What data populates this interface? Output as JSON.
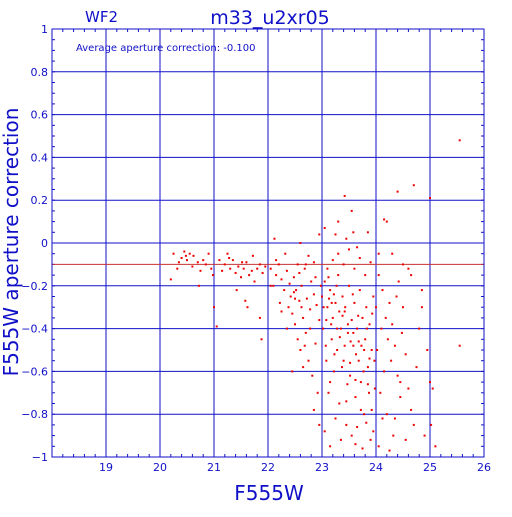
{
  "chart_data": {
    "type": "scatter",
    "chip_label": "WF2",
    "title": "m33_u2xr05",
    "annotation": "Average aperture correction: -0.100",
    "xlabel": "F555W",
    "ylabel": "F555W aperture correction",
    "xlim": [
      18,
      26
    ],
    "ylim": [
      -1,
      1
    ],
    "xticks": [
      19,
      20,
      21,
      22,
      23,
      24,
      25,
      26
    ],
    "yticks": [
      -1,
      -0.8,
      -0.6,
      -0.4,
      -0.2,
      0,
      0.2,
      0.4,
      0.6,
      0.8,
      1
    ],
    "ytick_labels": [
      "−1",
      "−0.8",
      "−0.6",
      "−0.4",
      "−0.2",
      "0",
      "0.2",
      "0.4",
      "0.6",
      "0.8",
      "1"
    ],
    "grid": true,
    "reference_line_y": -0.1,
    "colors": {
      "axes": "#1010c8",
      "points": "#ee0000",
      "reference_line": "#c83030",
      "background": "#ffffff"
    },
    "points": [
      [
        20.25,
        -0.05
      ],
      [
        20.32,
        -0.12
      ],
      [
        20.4,
        -0.07
      ],
      [
        20.45,
        -0.04
      ],
      [
        20.5,
        -0.08
      ],
      [
        20.55,
        -0.05
      ],
      [
        20.6,
        -0.11
      ],
      [
        20.62,
        -0.06
      ],
      [
        20.7,
        -0.09
      ],
      [
        20.75,
        -0.13
      ],
      [
        20.8,
        -0.08
      ],
      [
        20.85,
        -0.1
      ],
      [
        20.9,
        -0.05
      ],
      [
        20.95,
        -0.12
      ],
      [
        20.72,
        -0.2
      ],
      [
        20.2,
        -0.17
      ],
      [
        20.35,
        -0.09
      ],
      [
        20.48,
        -0.06
      ],
      [
        21.0,
        -0.3
      ],
      [
        21.05,
        -0.39
      ],
      [
        20.98,
        -0.15
      ],
      [
        21.2,
        -0.1
      ],
      [
        21.25,
        -0.05
      ],
      [
        21.3,
        -0.12
      ],
      [
        21.35,
        -0.08
      ],
      [
        21.4,
        -0.14
      ],
      [
        21.45,
        -0.11
      ],
      [
        21.5,
        -0.16
      ],
      [
        21.55,
        -0.12
      ],
      [
        21.6,
        -0.09
      ],
      [
        21.65,
        -0.15
      ],
      [
        21.7,
        -0.13
      ],
      [
        21.75,
        -0.18
      ],
      [
        21.8,
        -0.12
      ],
      [
        21.85,
        -0.1
      ],
      [
        21.9,
        -0.14
      ],
      [
        21.95,
        -0.11
      ],
      [
        21.42,
        -0.22
      ],
      [
        21.62,
        -0.3
      ],
      [
        21.85,
        -0.35
      ],
      [
        21.88,
        -0.45
      ],
      [
        21.52,
        -0.09
      ],
      [
        21.28,
        -0.07
      ],
      [
        21.72,
        -0.06
      ],
      [
        21.1,
        -0.08
      ],
      [
        21.15,
        -0.13
      ],
      [
        21.58,
        -0.27
      ],
      [
        22.05,
        -0.12
      ],
      [
        22.1,
        -0.2
      ],
      [
        22.12,
        0.02
      ],
      [
        22.15,
        -0.15
      ],
      [
        22.2,
        -0.1
      ],
      [
        22.22,
        -0.28
      ],
      [
        22.25,
        -0.17
      ],
      [
        22.3,
        -0.22
      ],
      [
        22.35,
        -0.13
      ],
      [
        22.38,
        -0.3
      ],
      [
        22.4,
        -0.19
      ],
      [
        22.42,
        -0.25
      ],
      [
        22.45,
        -0.33
      ],
      [
        22.48,
        -0.16
      ],
      [
        22.5,
        -0.38
      ],
      [
        22.52,
        -0.22
      ],
      [
        22.55,
        -0.45
      ],
      [
        22.58,
        -0.27
      ],
      [
        22.6,
        -0.5
      ],
      [
        22.62,
        -0.2
      ],
      [
        22.65,
        -0.35
      ],
      [
        22.68,
        -0.12
      ],
      [
        22.7,
        -0.42
      ],
      [
        22.72,
        -0.26
      ],
      [
        22.75,
        -0.55
      ],
      [
        22.78,
        -0.31
      ],
      [
        22.8,
        -0.18
      ],
      [
        22.82,
        -0.62
      ],
      [
        22.85,
        -0.24
      ],
      [
        22.88,
        -0.47
      ],
      [
        22.9,
        -0.29
      ],
      [
        22.92,
        -0.7
      ],
      [
        22.95,
        -0.36
      ],
      [
        22.98,
        -0.2
      ],
      [
        22.15,
        -0.08
      ],
      [
        22.32,
        -0.05
      ],
      [
        22.55,
        -0.1
      ],
      [
        22.6,
        0.0
      ],
      [
        22.75,
        -0.06
      ],
      [
        22.85,
        -0.09
      ],
      [
        22.95,
        0.04
      ],
      [
        22.45,
        -0.6
      ],
      [
        22.65,
        -0.58
      ],
      [
        22.85,
        -0.78
      ],
      [
        22.95,
        -0.85
      ],
      [
        22.35,
        -0.4
      ],
      [
        22.25,
        -0.32
      ],
      [
        22.7,
        -0.1
      ],
      [
        22.48,
        -0.23
      ],
      [
        22.58,
        -0.14
      ],
      [
        22.88,
        -0.16
      ],
      [
        22.78,
        -0.4
      ],
      [
        22.68,
        -0.48
      ],
      [
        22.62,
        -0.3
      ],
      [
        22.5,
        -0.26
      ],
      [
        22.05,
        -0.2
      ],
      [
        23.0,
        -0.25
      ],
      [
        23.02,
        -0.4
      ],
      [
        23.05,
        -0.18
      ],
      [
        23.05,
        0.07
      ],
      [
        23.05,
        -0.88
      ],
      [
        23.08,
        -0.55
      ],
      [
        23.1,
        -0.3
      ],
      [
        23.12,
        -0.7
      ],
      [
        23.15,
        -0.22
      ],
      [
        23.18,
        -0.45
      ],
      [
        23.2,
        -0.35
      ],
      [
        23.22,
        -0.6
      ],
      [
        23.25,
        -0.28
      ],
      [
        23.28,
        -0.5
      ],
      [
        23.3,
        -0.15
      ],
      [
        23.32,
        -0.75
      ],
      [
        23.35,
        -0.4
      ],
      [
        23.38,
        -0.25
      ],
      [
        23.4,
        -0.55
      ],
      [
        23.42,
        -0.32
      ],
      [
        23.45,
        -0.85
      ],
      [
        23.48,
        -0.42
      ],
      [
        23.5,
        -0.2
      ],
      [
        23.52,
        -0.62
      ],
      [
        23.55,
        -0.36
      ],
      [
        23.58,
        -0.48
      ],
      [
        23.6,
        -0.28
      ],
      [
        23.62,
        -0.72
      ],
      [
        23.65,
        -0.4
      ],
      [
        23.68,
        -0.55
      ],
      [
        23.7,
        -0.22
      ],
      [
        23.72,
        -0.65
      ],
      [
        23.75,
        -0.35
      ],
      [
        23.78,
        -0.8
      ],
      [
        23.8,
        -0.45
      ],
      [
        23.82,
        -0.3
      ],
      [
        23.85,
        -0.58
      ],
      [
        23.88,
        -0.38
      ],
      [
        23.9,
        -0.92
      ],
      [
        23.92,
        -0.5
      ],
      [
        23.95,
        -0.25
      ],
      [
        23.98,
        -0.68
      ],
      [
        23.03,
        -0.3
      ],
      [
        23.07,
        -0.48
      ],
      [
        23.13,
        -0.26
      ],
      [
        23.17,
        -0.38
      ],
      [
        23.23,
        -0.52
      ],
      [
        23.27,
        -0.2
      ],
      [
        23.33,
        -0.44
      ],
      [
        23.37,
        -0.58
      ],
      [
        23.43,
        -0.3
      ],
      [
        23.47,
        -0.66
      ],
      [
        23.53,
        -0.46
      ],
      [
        23.57,
        -0.24
      ],
      [
        23.63,
        -0.52
      ],
      [
        23.67,
        -0.34
      ],
      [
        23.73,
        -0.48
      ],
      [
        23.77,
        -0.6
      ],
      [
        23.83,
        -0.4
      ],
      [
        23.87,
        -0.7
      ],
      [
        23.93,
        -0.33
      ],
      [
        23.97,
        -0.55
      ],
      [
        23.1,
        -0.12
      ],
      [
        23.2,
        -0.08
      ],
      [
        23.3,
        -0.05
      ],
      [
        23.4,
        -0.1
      ],
      [
        23.5,
        -0.03
      ],
      [
        23.6,
        -0.12
      ],
      [
        23.7,
        -0.07
      ],
      [
        23.8,
        -0.15
      ],
      [
        23.9,
        -0.09
      ],
      [
        23.15,
        -0.95
      ],
      [
        23.35,
        -0.92
      ],
      [
        23.55,
        -0.9
      ],
      [
        23.75,
        -0.96
      ],
      [
        23.95,
        -0.88
      ],
      [
        23.25,
        0.04
      ],
      [
        23.45,
        0.02
      ],
      [
        23.65,
        -0.02
      ],
      [
        23.85,
        0.05
      ],
      [
        23.3,
        0.1
      ],
      [
        23.55,
        0.15
      ],
      [
        23.15,
        -0.65
      ],
      [
        23.25,
        -0.82
      ],
      [
        23.45,
        -0.74
      ],
      [
        23.65,
        -0.86
      ],
      [
        23.85,
        -0.66
      ],
      [
        23.62,
        -0.94
      ],
      [
        23.08,
        -0.36
      ],
      [
        23.18,
        -0.28
      ],
      [
        23.28,
        -0.4
      ],
      [
        23.38,
        -0.34
      ],
      [
        23.48,
        -0.38
      ],
      [
        23.58,
        -0.42
      ],
      [
        23.68,
        -0.46
      ],
      [
        23.78,
        -0.5
      ],
      [
        23.88,
        -0.54
      ],
      [
        23.42,
        0.22
      ],
      [
        23.58,
        0.05
      ],
      [
        23.12,
        -0.16
      ],
      [
        23.22,
        -0.24
      ],
      [
        23.32,
        -0.32
      ],
      [
        23.42,
        -0.48
      ],
      [
        23.52,
        -0.56
      ],
      [
        23.62,
        -0.64
      ],
      [
        23.72,
        -0.78
      ],
      [
        23.82,
        -0.84
      ],
      [
        23.92,
        -0.78
      ],
      [
        24.0,
        -0.3
      ],
      [
        24.02,
        -0.5
      ],
      [
        24.05,
        -0.15
      ],
      [
        24.08,
        -0.7
      ],
      [
        24.1,
        -0.4
      ],
      [
        24.12,
        -0.22
      ],
      [
        24.15,
        -0.6
      ],
      [
        24.18,
        -0.35
      ],
      [
        24.2,
        -0.8
      ],
      [
        24.22,
        -0.45
      ],
      [
        24.25,
        -0.28
      ],
      [
        24.28,
        -0.55
      ],
      [
        24.3,
        -0.38
      ],
      [
        24.32,
        -0.9
      ],
      [
        24.35,
        -0.48
      ],
      [
        24.38,
        -0.25
      ],
      [
        24.4,
        -0.62
      ],
      [
        24.42,
        -0.18
      ],
      [
        24.45,
        -0.72
      ],
      [
        24.48,
        -0.42
      ],
      [
        24.5,
        -0.3
      ],
      [
        24.55,
        -0.52
      ],
      [
        24.6,
        -0.68
      ],
      [
        24.65,
        -0.78
      ],
      [
        24.7,
        -0.85
      ],
      [
        24.75,
        -0.58
      ],
      [
        24.8,
        -0.4
      ],
      [
        24.85,
        -0.3
      ],
      [
        24.9,
        -0.9
      ],
      [
        24.15,
        0.11
      ],
      [
        24.2,
        0.1
      ],
      [
        24.05,
        -0.05
      ],
      [
        24.3,
        -0.05
      ],
      [
        24.4,
        0.24
      ],
      [
        24.5,
        -0.1
      ],
      [
        24.6,
        -0.12
      ],
      [
        24.05,
        -0.95
      ],
      [
        24.25,
        -0.97
      ],
      [
        24.55,
        -0.92
      ],
      [
        24.35,
        -0.82
      ],
      [
        24.45,
        -0.65
      ],
      [
        24.12,
        -0.82
      ],
      [
        24.7,
        0.27
      ],
      [
        24.65,
        -0.15
      ],
      [
        24.85,
        -0.22
      ],
      [
        24.95,
        -0.5
      ],
      [
        25.0,
        -0.65
      ],
      [
        25.02,
        -0.85
      ],
      [
        25.05,
        -0.68
      ],
      [
        25.1,
        -0.95
      ],
      [
        25.55,
        0.48
      ],
      [
        25.55,
        -0.48
      ],
      [
        25.0,
        0.21
      ]
    ]
  }
}
